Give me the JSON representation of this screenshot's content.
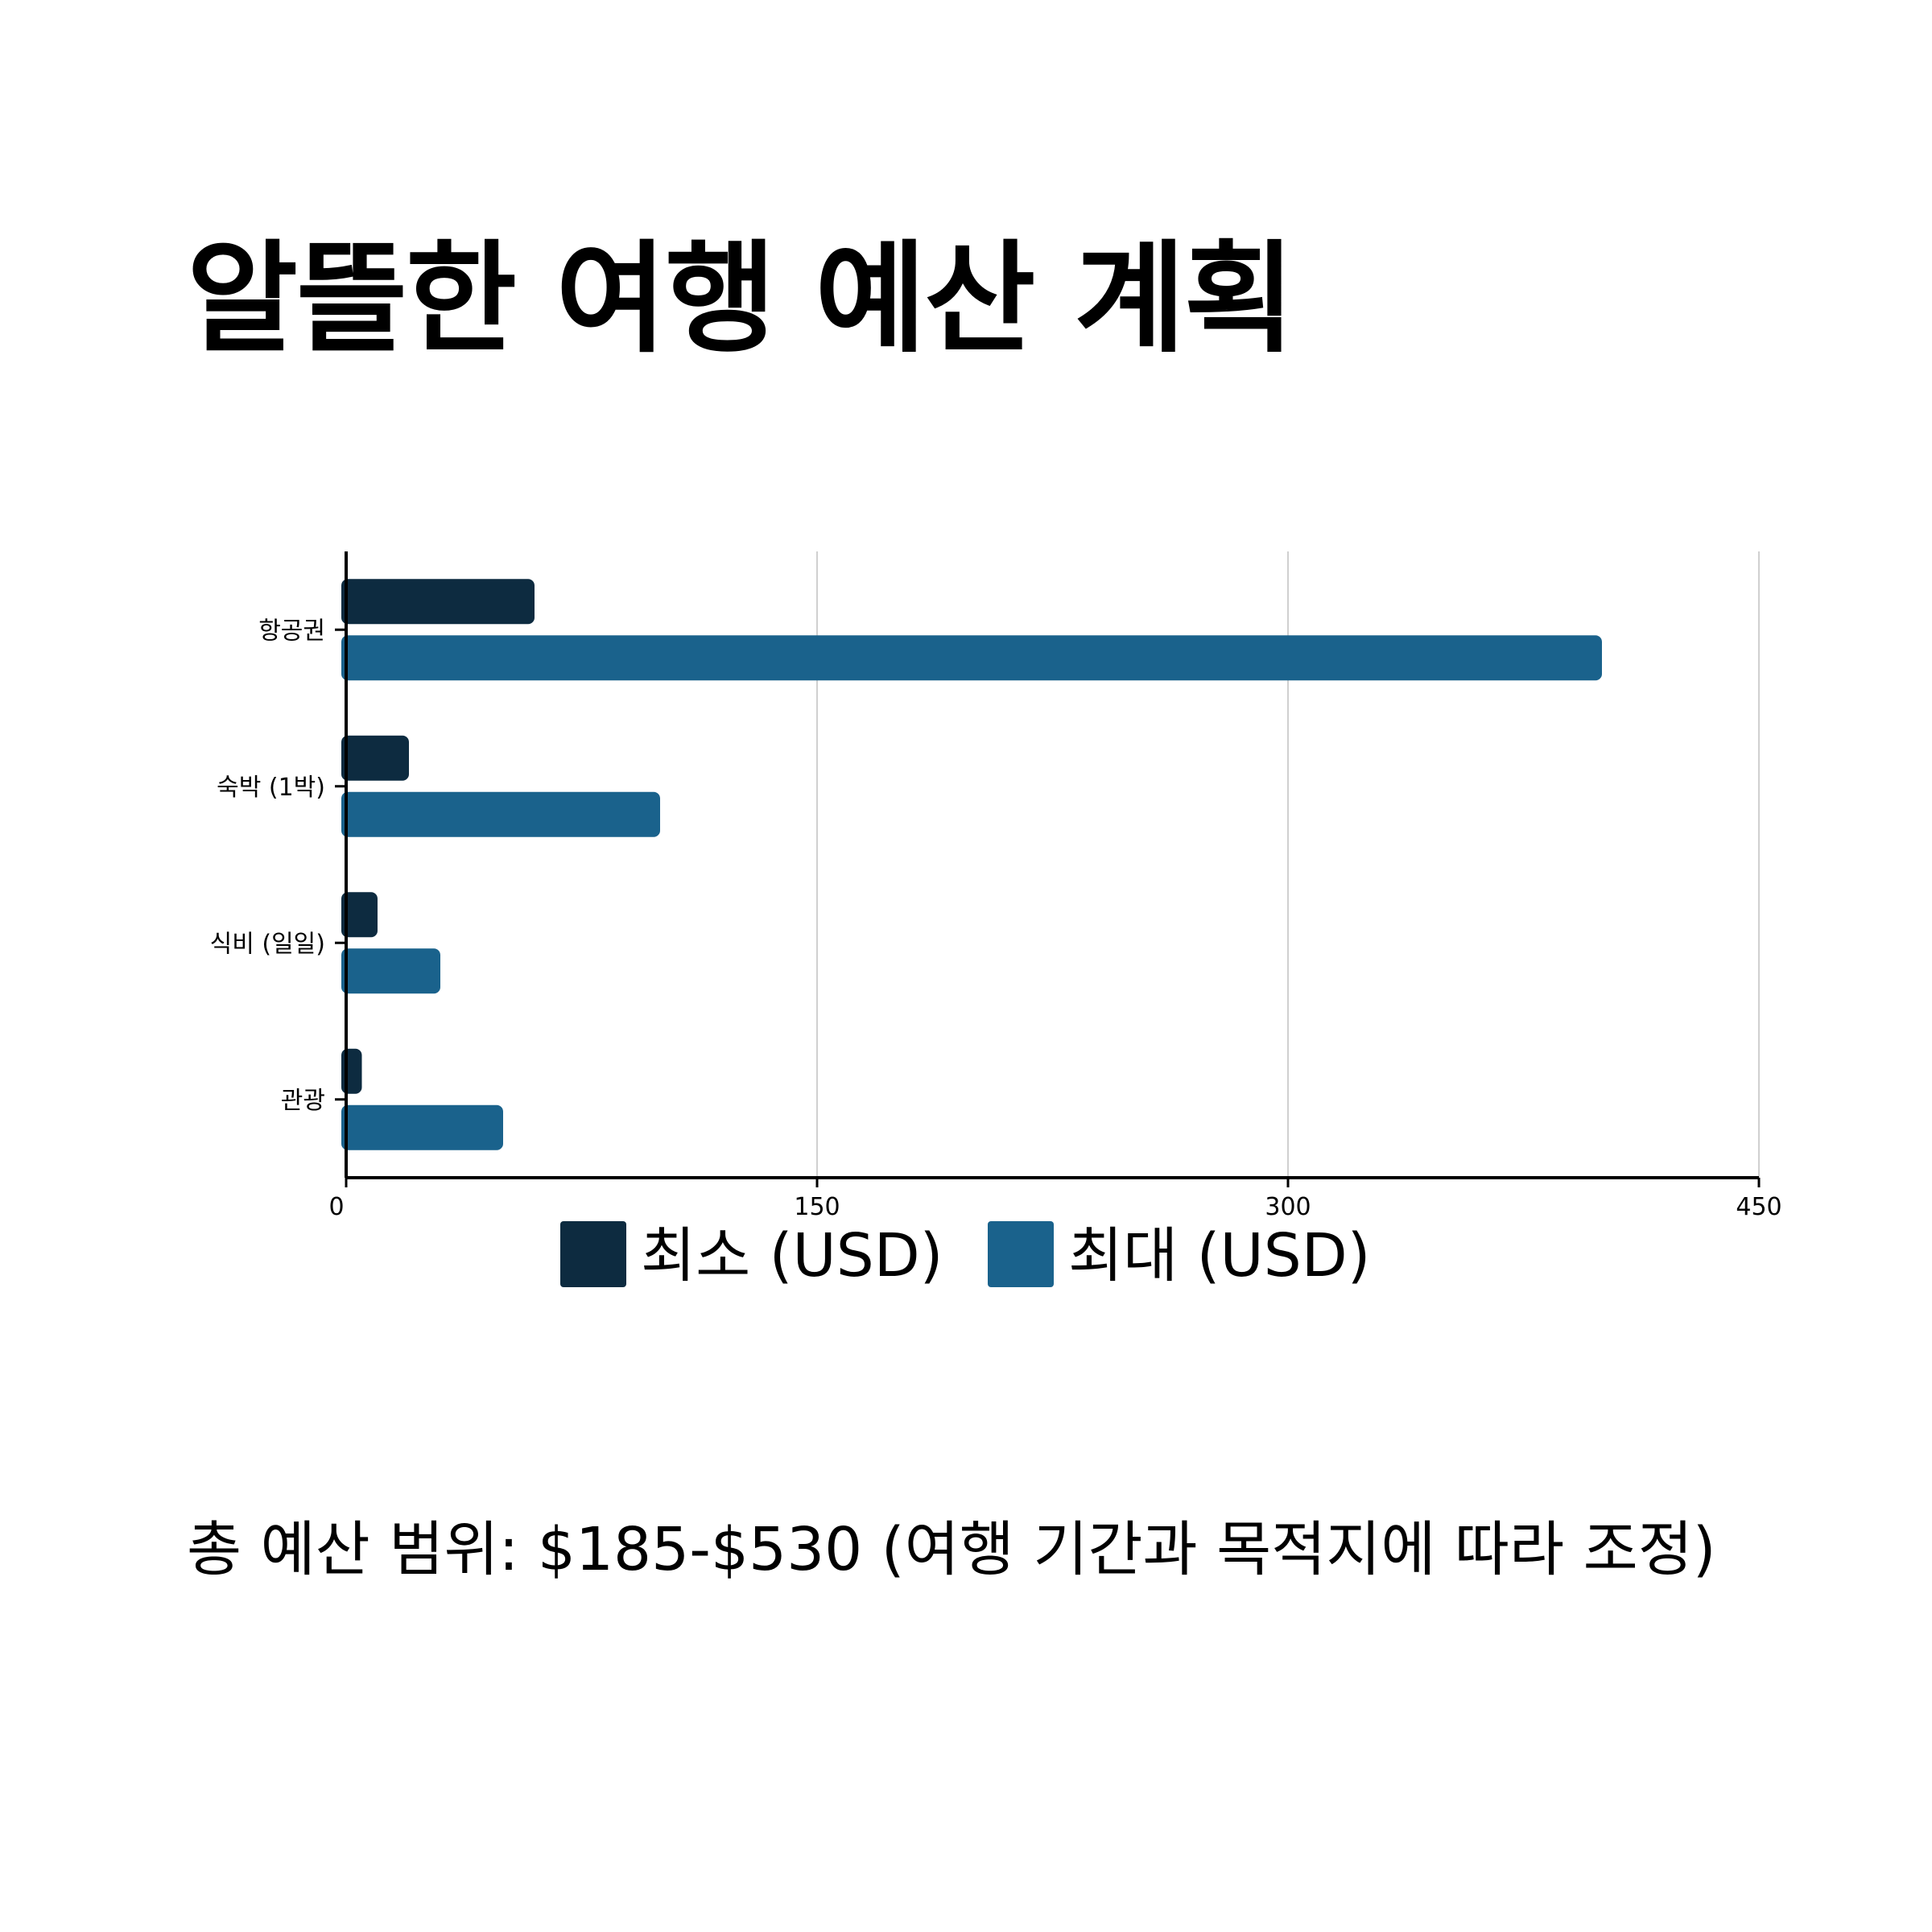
{
  "title": "알뜰한 여행 예산 계획",
  "footnote": "총 예산 범위: $185-$530 (여행 기간과 목적지에 따라 조정)",
  "colors": {
    "min": "#0d2b40",
    "max": "#1a628c",
    "grid": "#d0d0d0",
    "axis": "#000000"
  },
  "chart_data": {
    "type": "bar",
    "orientation": "horizontal",
    "categories": [
      "항공권",
      "숙박 (1박)",
      "식비 (일일)",
      "관광"
    ],
    "series": [
      {
        "name": "최소 (USD)",
        "values": [
          60,
          20,
          10,
          5
        ]
      },
      {
        "name": "최대 (USD)",
        "values": [
          400,
          100,
          30,
          50
        ]
      }
    ],
    "xlim": [
      0,
      450
    ],
    "xticks": [
      0,
      150,
      300,
      450
    ],
    "grid": "vertical",
    "legend_position": "bottom-center",
    "title": "",
    "xlabel": "",
    "ylabel": ""
  }
}
